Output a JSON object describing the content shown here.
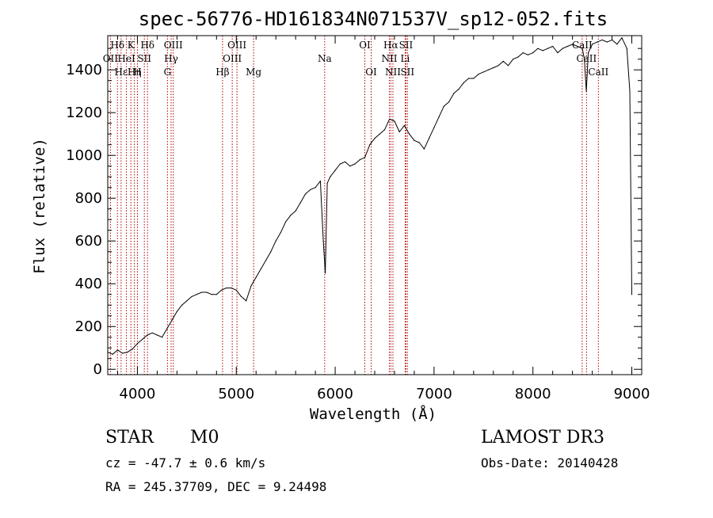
{
  "chart_data": {
    "type": "line",
    "title": "spec-56776-HD161834N071537V_sp12-052.fits",
    "xlabel": "Wavelength (Å)",
    "ylabel": "Flux (relative)",
    "xlim": [
      3700,
      9100
    ],
    "ylim": [
      -25,
      1560
    ],
    "xticks": [
      4000,
      5000,
      6000,
      7000,
      8000,
      9000
    ],
    "xtick_labels": [
      "4000",
      "5000",
      "6000",
      "7000",
      "8000",
      "9000"
    ],
    "yticks": [
      0,
      200,
      400,
      600,
      800,
      1000,
      1200,
      1400
    ],
    "ytick_labels": [
      "0",
      "200",
      "400",
      "600",
      "800",
      "1000",
      "1200",
      "1400"
    ],
    "grid": false,
    "series": [
      {
        "name": "flux",
        "x": [
          3700,
          3750,
          3800,
          3850,
          3900,
          3950,
          4000,
          4050,
          4100,
          4150,
          4200,
          4250,
          4300,
          4350,
          4400,
          4450,
          4500,
          4550,
          4600,
          4650,
          4700,
          4750,
          4800,
          4850,
          4900,
          4950,
          5000,
          5050,
          5100,
          5150,
          5200,
          5250,
          5300,
          5350,
          5400,
          5450,
          5500,
          5550,
          5600,
          5650,
          5700,
          5750,
          5800,
          5850,
          5880,
          5900,
          5920,
          5950,
          6000,
          6050,
          6100,
          6150,
          6200,
          6250,
          6300,
          6350,
          6400,
          6450,
          6500,
          6550,
          6600,
          6650,
          6700,
          6750,
          6800,
          6850,
          6900,
          6950,
          7000,
          7050,
          7100,
          7150,
          7200,
          7250,
          7300,
          7350,
          7400,
          7450,
          7500,
          7550,
          7600,
          7650,
          7700,
          7750,
          7800,
          7850,
          7900,
          7950,
          8000,
          8050,
          8100,
          8150,
          8200,
          8250,
          8300,
          8350,
          8400,
          8450,
          8500,
          8520,
          8540,
          8560,
          8600,
          8650,
          8700,
          8750,
          8800,
          8850,
          8900,
          8950,
          8980,
          9000
        ],
        "y": [
          80,
          70,
          90,
          75,
          80,
          95,
          120,
          140,
          160,
          170,
          160,
          150,
          190,
          230,
          270,
          300,
          320,
          340,
          350,
          360,
          360,
          350,
          350,
          370,
          380,
          380,
          370,
          340,
          320,
          390,
          430,
          470,
          510,
          550,
          600,
          640,
          690,
          720,
          740,
          780,
          820,
          840,
          850,
          880,
          600,
          450,
          870,
          900,
          930,
          960,
          970,
          950,
          960,
          980,
          990,
          1050,
          1080,
          1100,
          1120,
          1170,
          1160,
          1110,
          1140,
          1100,
          1070,
          1060,
          1030,
          1080,
          1130,
          1180,
          1230,
          1250,
          1290,
          1310,
          1340,
          1360,
          1360,
          1380,
          1390,
          1400,
          1410,
          1420,
          1440,
          1420,
          1450,
          1460,
          1480,
          1470,
          1480,
          1500,
          1490,
          1500,
          1510,
          1480,
          1500,
          1510,
          1520,
          1510,
          1500,
          1450,
          1300,
          1480,
          1520,
          1530,
          1540,
          1530,
          1540,
          1520,
          1550,
          1500,
          1300,
          350
        ]
      }
    ],
    "spectral_lines": [
      {
        "name": "Hδ",
        "wavelength": 3798,
        "label_row": 1
      },
      {
        "name": "OII",
        "wavelength": 3727,
        "label_row": 2
      },
      {
        "name": "Hε",
        "wavelength": 3835,
        "label_row": 3
      },
      {
        "name": "HeI",
        "wavelength": 3889,
        "label_row": 2
      },
      {
        "name": "K",
        "wavelength": 3934,
        "label_row": 1
      },
      {
        "name": "Hη",
        "wavelength": 3970,
        "label_row": 3
      },
      {
        "name": "SII",
        "wavelength": 4070,
        "label_row": 2
      },
      {
        "name": "Hδ",
        "wavelength": 4102,
        "label_row": 1
      },
      {
        "name": "H",
        "wavelength": 4000,
        "label_row": 3
      },
      {
        "name": "OIII",
        "wavelength": 4363,
        "label_row": 1
      },
      {
        "name": "Hγ",
        "wavelength": 4341,
        "label_row": 2
      },
      {
        "name": "G",
        "wavelength": 4304,
        "label_row": 3
      },
      {
        "name": "Hβ",
        "wavelength": 4861,
        "label_row": 3
      },
      {
        "name": "OIII",
        "wavelength": 4959,
        "label_row": 2
      },
      {
        "name": "OIII",
        "wavelength": 5007,
        "label_row": 1
      },
      {
        "name": "Mg",
        "wavelength": 5175,
        "label_row": 3
      },
      {
        "name": "Na",
        "wavelength": 5894,
        "label_row": 2
      },
      {
        "name": "OI",
        "wavelength": 6300,
        "label_row": 1
      },
      {
        "name": "OI",
        "wavelength": 6364,
        "label_row": 3
      },
      {
        "name": "NII",
        "wavelength": 6548,
        "label_row": 2
      },
      {
        "name": "Hα",
        "wavelength": 6563,
        "label_row": 1
      },
      {
        "name": "NII",
        "wavelength": 6584,
        "label_row": 3
      },
      {
        "name": "Li",
        "wavelength": 6708,
        "label_row": 2
      },
      {
        "name": "SII",
        "wavelength": 6716,
        "label_row": 1
      },
      {
        "name": "SII",
        "wavelength": 6731,
        "label_row": 3
      },
      {
        "name": "CaII",
        "wavelength": 8498,
        "label_row": 1
      },
      {
        "name": "CaII",
        "wavelength": 8542,
        "label_row": 2
      },
      {
        "name": "CaII",
        "wavelength": 8662,
        "label_row": 3
      }
    ],
    "spectral_line_color": "#b00000"
  },
  "info": {
    "object_class": "STAR",
    "subclass": "M0",
    "survey": "LAMOST DR3",
    "cz": "cz = -47.7 ± 0.6 km/s",
    "obs_date": "Obs-Date: 20140428",
    "coords": "RA = 245.37709, DEC =   9.24498"
  }
}
